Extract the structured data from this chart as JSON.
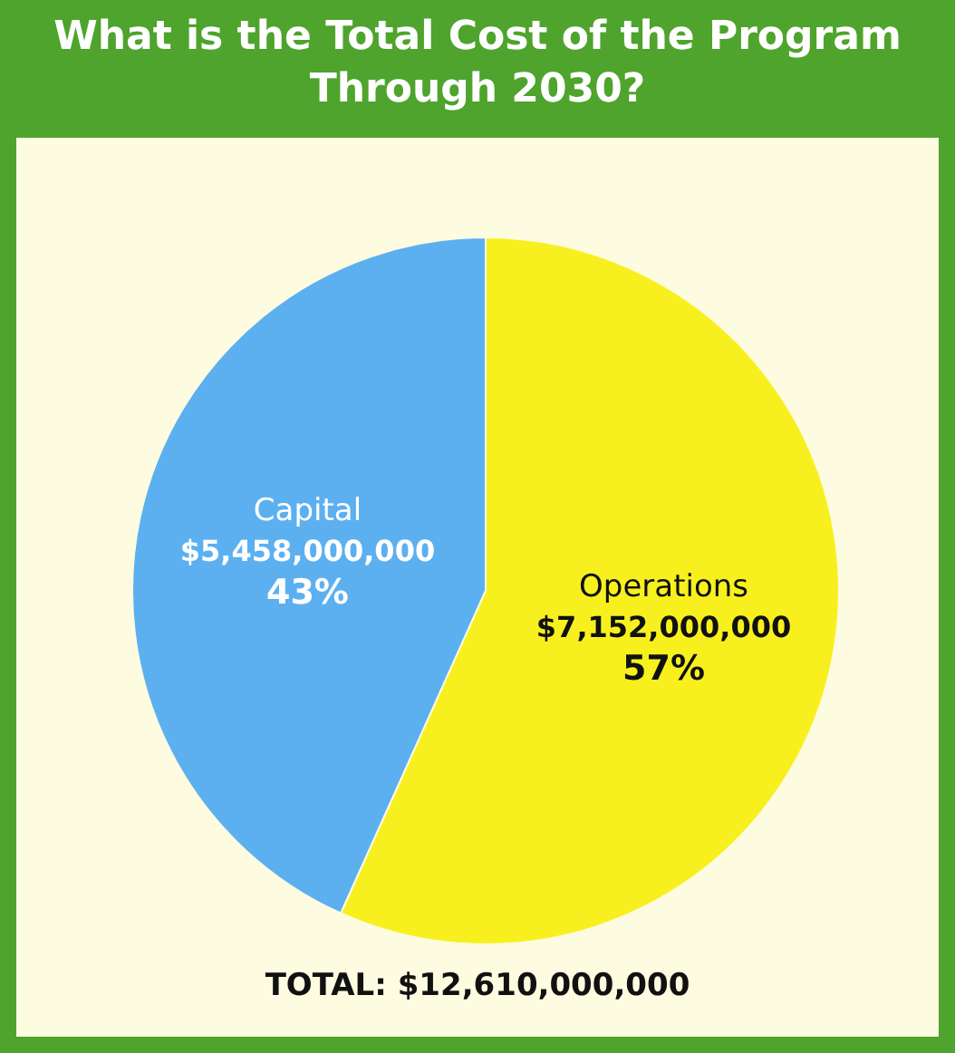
{
  "chart_data": {
    "type": "pie",
    "title": "What is the Total Cost of the Program Through 2030?",
    "categories": [
      "Capital",
      "Operations"
    ],
    "values": [
      5458000000,
      7152000000
    ],
    "colors": [
      "#5cb0f0",
      "#f8f01e"
    ],
    "value_labels": [
      "$5,458,000,000\n43%",
      "$7,152,000,000\n57%"
    ],
    "annotations": [
      "TOTAL: $12,610,000,000"
    ]
  }
}
